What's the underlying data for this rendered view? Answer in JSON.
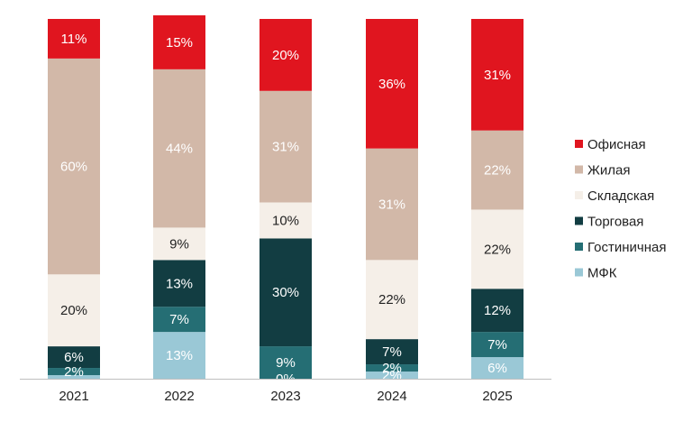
{
  "chart_data": {
    "type": "bar",
    "stacked": true,
    "percent": true,
    "categories": [
      "2021",
      "2022",
      "2023",
      "2024",
      "2025"
    ],
    "series": [
      {
        "name": "МФК",
        "color": "#9ac8d6",
        "label_color": "#ffffff",
        "values": [
          1,
          13,
          0,
          2,
          6
        ],
        "labels": [
          "",
          "13%",
          "0%",
          "2%",
          "6%"
        ]
      },
      {
        "name": "Гостиничная",
        "color": "#256e74",
        "label_color": "#ffffff",
        "values": [
          2,
          7,
          9,
          2,
          7
        ],
        "labels": [
          "2%",
          "7%",
          "9%",
          "2%",
          "7%"
        ]
      },
      {
        "name": "Торговая",
        "color": "#123d42",
        "label_color": "#ffffff",
        "values": [
          6,
          13,
          30,
          7,
          12
        ],
        "labels": [
          "6%",
          "13%",
          "30%",
          "7%",
          "12%"
        ]
      },
      {
        "name": "Складская",
        "color": "#f5efe8",
        "label_color": "#222222",
        "values": [
          20,
          9,
          10,
          22,
          22
        ],
        "labels": [
          "20%",
          "9%",
          "10%",
          "22%",
          "22%"
        ]
      },
      {
        "name": "Жилая",
        "color": "#d2b8a8",
        "label_color": "#ffffff",
        "values": [
          60,
          44,
          31,
          31,
          22
        ],
        "labels": [
          "60%",
          "44%",
          "31%",
          "31%",
          "22%"
        ]
      },
      {
        "name": "Офисная",
        "color": "#e0151f",
        "label_color": "#ffffff",
        "values": [
          11,
          15,
          20,
          36,
          31
        ],
        "labels": [
          "11%",
          "15%",
          "20%",
          "36%",
          "31%"
        ]
      }
    ],
    "legend_order": [
      "Офисная",
      "Жилая",
      "Складская",
      "Торговая",
      "Гостиничная",
      "МФК"
    ],
    "legend_position": "right",
    "ylim": [
      0,
      100
    ],
    "title": "",
    "xlabel": "",
    "ylabel": "",
    "grid": false
  }
}
